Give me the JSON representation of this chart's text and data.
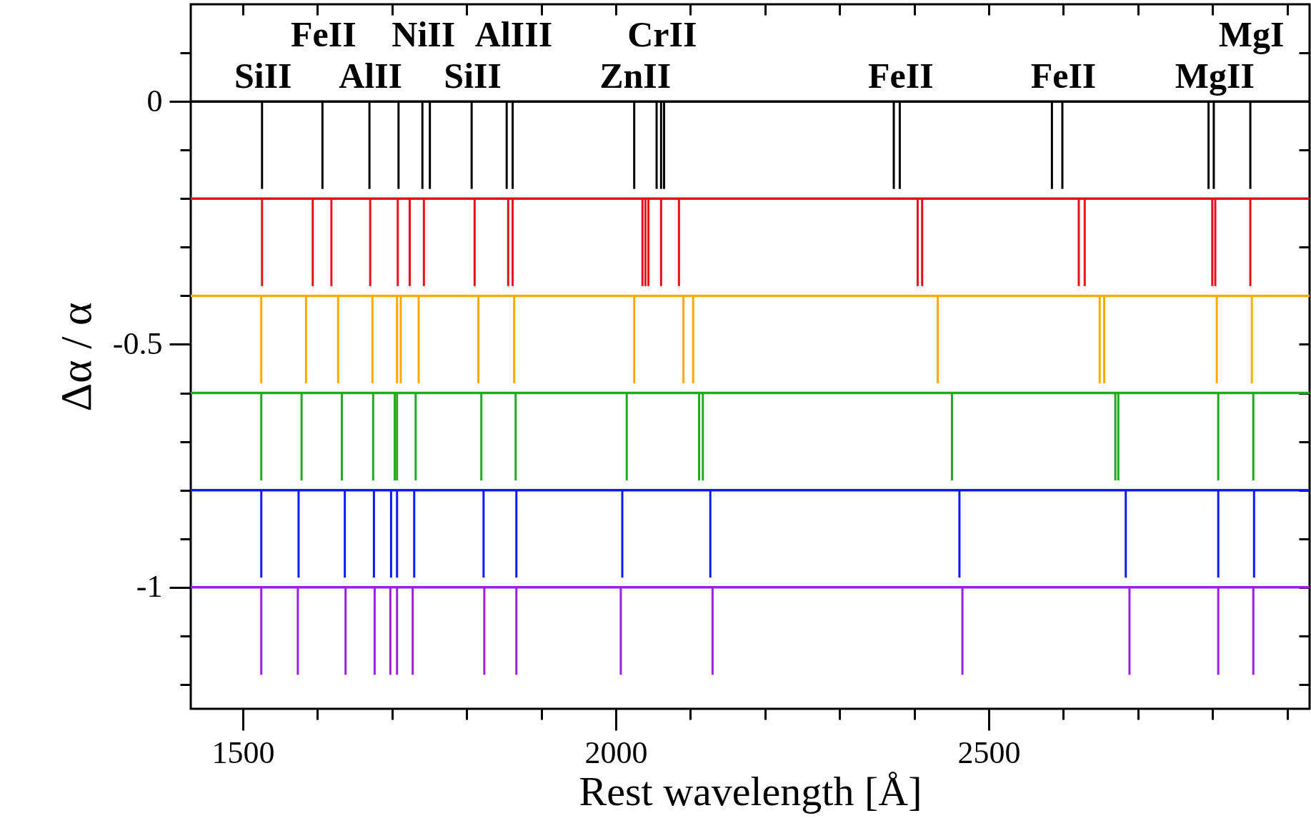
{
  "chart_data": {
    "type": "bar",
    "xlabel": "Rest wavelength [Å]",
    "ylabel": "Δα / α",
    "xlim": [
      1430,
      2930
    ],
    "ylim": [
      -1.25,
      0.2
    ],
    "xticks": [
      1500,
      {
        "value": 1600,
        "label": null
      },
      {
        "value": 1700,
        "label": null
      },
      {
        "value": 1800,
        "label": null
      },
      {
        "value": 1900,
        "label": null
      },
      2000,
      {
        "value": 2100,
        "label": null
      },
      {
        "value": 2200,
        "label": null
      },
      {
        "value": 2300,
        "label": null
      },
      {
        "value": 2400,
        "label": null
      },
      2500,
      {
        "value": 2600,
        "label": null
      },
      {
        "value": 2700,
        "label": null
      },
      {
        "value": 2800,
        "label": null
      },
      {
        "value": 2900,
        "label": null
      }
    ],
    "yticks": [
      {
        "value": 0.1,
        "label": null
      },
      0,
      {
        "value": -0.1,
        "label": null
      },
      {
        "value": -0.2,
        "label": null
      },
      {
        "value": -0.3,
        "label": null
      },
      {
        "value": -0.4,
        "label": null
      },
      -0.5,
      {
        "value": -0.6,
        "label": null
      },
      {
        "value": -0.7,
        "label": null
      },
      {
        "value": -0.8,
        "label": null
      },
      {
        "value": -0.9,
        "label": null
      },
      -1,
      {
        "value": -1.1,
        "label": null
      },
      {
        "value": -1.2,
        "label": null
      }
    ],
    "series": [
      {
        "color": "#000000",
        "x": [
          1527,
          1608,
          1671,
          1710,
          1742,
          1752,
          1808,
          1855,
          1863,
          2026,
          2056,
          2062,
          2066,
          2374,
          2382,
          2586,
          2600,
          2796,
          2803,
          2852
        ],
        "base": [
          0,
          0,
          0,
          0,
          0,
          0,
          0,
          0,
          0,
          0,
          0,
          0,
          0,
          0,
          0,
          0,
          0,
          0,
          0,
          0
        ],
        "values": [
          -0.18,
          -0.18,
          -0.18,
          -0.18,
          -0.18,
          -0.18,
          -0.18,
          -0.18,
          -0.18,
          -0.18,
          -0.18,
          -0.18,
          -0.18,
          -0.18,
          -0.18,
          -0.18,
          -0.18,
          -0.18,
          -0.18,
          -0.18
        ]
      },
      {
        "color": "#e8101a",
        "x": [
          1527,
          1595,
          1620,
          1672,
          1709,
          1725,
          1744,
          1812,
          1857,
          1863,
          2037,
          2041,
          2045,
          2062,
          2086,
          2406,
          2412,
          2622,
          2630,
          2801,
          2805,
          2852
        ],
        "base": [
          -0.2,
          -0.2,
          -0.2,
          -0.2,
          -0.2,
          -0.2,
          -0.2,
          -0.2,
          -0.2,
          -0.2,
          -0.2,
          -0.2,
          -0.2,
          -0.2,
          -0.2,
          -0.2,
          -0.2,
          -0.2,
          -0.2,
          -0.2,
          -0.2,
          -0.2
        ],
        "values": [
          -0.18,
          -0.18,
          -0.18,
          -0.18,
          -0.18,
          -0.18,
          -0.18,
          -0.18,
          -0.18,
          -0.18,
          -0.18,
          -0.18,
          -0.18,
          -0.18,
          -0.18,
          -0.18,
          -0.18,
          -0.18,
          -0.18,
          -0.18,
          -0.18,
          -0.18
        ]
      },
      {
        "color": "#ffaa00",
        "x": [
          1526,
          1586,
          1629,
          1675,
          1708,
          1713,
          1737,
          1817,
          1865,
          2026,
          2092,
          2105,
          2433,
          2650,
          2656,
          2807,
          2854
        ],
        "base": [
          -0.4,
          -0.4,
          -0.4,
          -0.4,
          -0.4,
          -0.4,
          -0.4,
          -0.4,
          -0.4,
          -0.4,
          -0.4,
          -0.4,
          -0.4,
          -0.4,
          -0.4,
          -0.4,
          -0.4
        ],
        "values": [
          -0.18,
          -0.18,
          -0.18,
          -0.18,
          -0.18,
          -0.18,
          -0.18,
          -0.18,
          -0.18,
          -0.18,
          -0.18,
          -0.18,
          -0.18,
          -0.18,
          -0.18,
          -0.18,
          -0.18
        ]
      },
      {
        "color": "#1faa1f",
        "x": [
          1526,
          1580,
          1634,
          1676,
          1705,
          1708,
          1733,
          1821,
          1867,
          2016,
          2113,
          2118,
          2452,
          2671,
          2675,
          2809,
          2856
        ],
        "base": [
          -0.6,
          -0.6,
          -0.6,
          -0.6,
          -0.6,
          -0.6,
          -0.6,
          -0.6,
          -0.6,
          -0.6,
          -0.6,
          -0.6,
          -0.6,
          -0.6,
          -0.6,
          -0.6,
          -0.6
        ],
        "values": [
          -0.18,
          -0.18,
          -0.18,
          -0.18,
          -0.18,
          -0.18,
          -0.18,
          -0.18,
          -0.18,
          -0.18,
          -0.18,
          -0.18,
          -0.18,
          -0.18,
          -0.18,
          -0.18,
          -0.18
        ]
      },
      {
        "color": "#0a1aff",
        "x": [
          1526,
          1576,
          1638,
          1677,
          1700,
          1708,
          1731,
          1824,
          1868,
          2010,
          2128,
          2462,
          2685,
          2809,
          2857
        ],
        "base": [
          -0.8,
          -0.8,
          -0.8,
          -0.8,
          -0.8,
          -0.8,
          -0.8,
          -0.8,
          -0.8,
          -0.8,
          -0.8,
          -0.8,
          -0.8,
          -0.8,
          -0.8
        ],
        "values": [
          -0.18,
          -0.18,
          -0.18,
          -0.18,
          -0.18,
          -0.18,
          -0.18,
          -0.18,
          -0.18,
          -0.18,
          -0.18,
          -0.18,
          -0.18,
          -0.18,
          -0.18
        ]
      },
      {
        "color": "#9a20e0",
        "x": [
          1526,
          1575,
          1639,
          1678,
          1699,
          1708,
          1729,
          1825,
          1868,
          2008,
          2131,
          2466,
          2690,
          2809,
          2856
        ],
        "base": [
          -1,
          -1,
          -1,
          -1,
          -1,
          -1,
          -1,
          -1,
          -1,
          -1,
          -1,
          -1,
          -1,
          -1,
          -1
        ],
        "values": [
          -0.18,
          -0.18,
          -0.18,
          -0.18,
          -0.18,
          -0.18,
          -0.18,
          -0.18,
          -0.18,
          -0.18,
          -0.18,
          -0.18,
          -0.18,
          -0.18,
          -0.18
        ]
      }
    ],
    "ref_lines": [
      {
        "axis": "y",
        "value": 0,
        "color": "#000000"
      },
      {
        "axis": "y",
        "value": -0.2,
        "color": "#e8101a"
      },
      {
        "axis": "y",
        "value": -0.4,
        "color": "#ffaa00"
      },
      {
        "axis": "y",
        "value": -0.6,
        "color": "#1faa1f"
      },
      {
        "axis": "y",
        "value": -0.8,
        "color": "#0a1aff"
      },
      {
        "axis": "y",
        "value": -1,
        "color": "#9a20e0"
      }
    ],
    "annotations": [
      {
        "text": "SiII",
        "x": 1527,
        "y": 0
      },
      {
        "text": "FeII",
        "x": 1608,
        "y": 0
      },
      {
        "text": "AlII",
        "x": 1671,
        "y": 0
      },
      {
        "text": "NiII",
        "x": 1742,
        "y": 0
      },
      {
        "text": "SiII",
        "x": 1808,
        "y": 0
      },
      {
        "text": "AlIII",
        "x": 1863,
        "y": 0
      },
      {
        "text": "ZnII",
        "x": 2026,
        "y": 0
      },
      {
        "text": "CrII",
        "x": 2062,
        "y": 0
      },
      {
        "text": "FeII",
        "x": 2382,
        "y": 0
      },
      {
        "text": "FeII",
        "x": 2600,
        "y": 0
      },
      {
        "text": "MgII",
        "x": 2803,
        "y": 0
      },
      {
        "text": "MgI",
        "x": 2852,
        "y": 0
      }
    ]
  }
}
